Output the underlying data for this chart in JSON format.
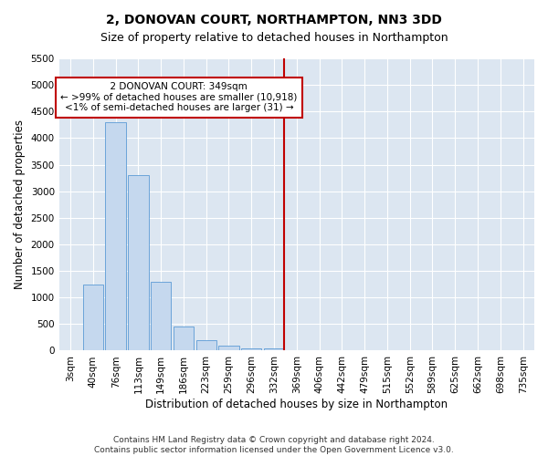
{
  "title": "2, DONOVAN COURT, NORTHAMPTON, NN3 3DD",
  "subtitle": "Size of property relative to detached houses in Northampton",
  "xlabel": "Distribution of detached houses by size in Northampton",
  "ylabel": "Number of detached properties",
  "footnote1": "Contains HM Land Registry data © Crown copyright and database right 2024.",
  "footnote2": "Contains public sector information licensed under the Open Government Licence v3.0.",
  "bar_labels": [
    "3sqm",
    "40sqm",
    "76sqm",
    "113sqm",
    "149sqm",
    "186sqm",
    "223sqm",
    "259sqm",
    "296sqm",
    "332sqm",
    "369sqm",
    "406sqm",
    "442sqm",
    "479sqm",
    "515sqm",
    "552sqm",
    "589sqm",
    "625sqm",
    "662sqm",
    "698sqm",
    "735sqm"
  ],
  "bar_values": [
    0,
    1250,
    4300,
    3300,
    1300,
    450,
    200,
    100,
    50,
    50,
    0,
    0,
    0,
    0,
    0,
    0,
    0,
    0,
    0,
    0,
    0
  ],
  "bar_color": "#c5d8ee",
  "bar_edge_color": "#5b9bd5",
  "background_color": "#dce6f1",
  "fig_background": "#ffffff",
  "ylim": [
    0,
    5500
  ],
  "yticks": [
    0,
    500,
    1000,
    1500,
    2000,
    2500,
    3000,
    3500,
    4000,
    4500,
    5000,
    5500
  ],
  "vline_color": "#c00000",
  "annotation_line1": "2 DONOVAN COURT: 349sqm",
  "annotation_line2": "← >99% of detached houses are smaller (10,918)",
  "annotation_line3": "<1% of semi-detached houses are larger (31) →",
  "annotation_box_color": "#c00000",
  "grid_color": "#ffffff",
  "title_fontsize": 10,
  "subtitle_fontsize": 9,
  "axis_label_fontsize": 8.5,
  "tick_fontsize": 7.5,
  "annotation_fontsize": 7.5,
  "footnote_fontsize": 6.5
}
